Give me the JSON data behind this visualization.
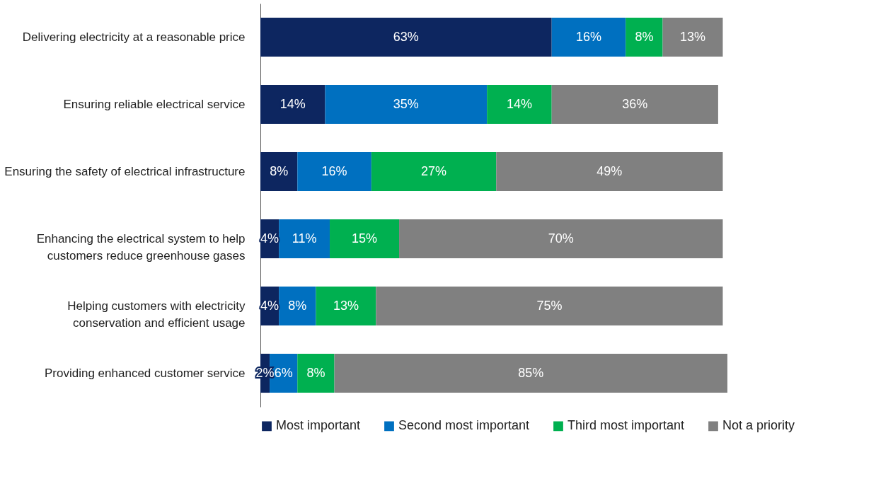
{
  "chart_data": {
    "type": "bar",
    "orientation": "horizontal",
    "stacked": true,
    "legend": "bottom",
    "categories": [
      "Delivering electricity at a reasonable price",
      "Ensuring reliable electrical service",
      "Ensuring the safety of electrical infrastructure",
      "Enhancing the electrical system to help\ncustomers reduce greenhouse gases",
      "Helping customers with electricity\nconservation and efficient usage",
      "Providing enhanced customer service"
    ],
    "series": [
      {
        "name": "Most important",
        "color": "#0d2660",
        "values": [
          63,
          14,
          8,
          4,
          4,
          2
        ],
        "value_labels": [
          "63%",
          "14%",
          "8%",
          "4%",
          "4%",
          "2%"
        ]
      },
      {
        "name": "Second most important",
        "color": "#0070c0",
        "values": [
          16,
          35,
          16,
          11,
          8,
          6
        ],
        "value_labels": [
          "16%",
          "35%",
          "16%",
          "11%",
          "8%",
          "6%"
        ]
      },
      {
        "name": "Third most important",
        "color": "#00b050",
        "values": [
          8,
          14,
          27,
          15,
          13,
          8
        ],
        "value_labels": [
          "8%",
          "14%",
          "27%",
          "15%",
          "13%",
          "8%"
        ]
      },
      {
        "name": "Not a priority",
        "color": "#808080",
        "values": [
          13,
          36,
          49,
          70,
          75,
          85
        ],
        "value_labels": [
          "13%",
          "36%",
          "49%",
          "70%",
          "75%",
          "85%"
        ]
      }
    ]
  }
}
